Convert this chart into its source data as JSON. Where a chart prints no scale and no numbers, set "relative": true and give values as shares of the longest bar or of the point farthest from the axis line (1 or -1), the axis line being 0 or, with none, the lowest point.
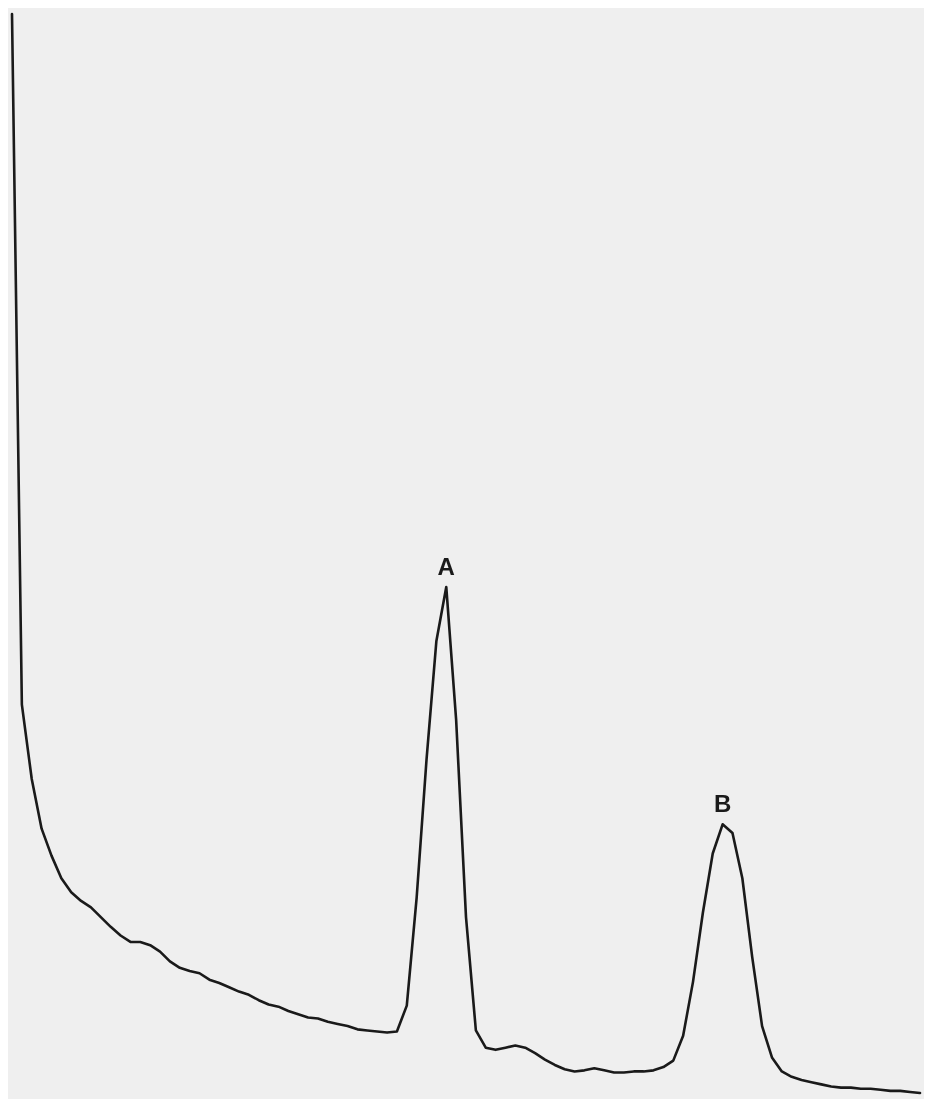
{
  "chart_data": {
    "type": "line",
    "relative": true,
    "line_style": "solid",
    "categories": [
      null,
      null,
      null,
      null,
      null,
      null,
      null,
      null,
      null,
      null,
      null,
      null,
      null,
      null,
      null,
      null,
      null,
      null,
      null,
      null,
      null,
      null,
      null,
      null,
      null,
      null,
      null,
      null,
      null,
      null,
      null,
      null,
      null,
      null,
      null,
      null,
      null,
      null,
      null,
      null,
      null,
      null,
      null,
      null,
      null,
      null,
      null,
      null,
      null,
      null,
      null,
      null,
      null,
      null,
      null,
      null,
      null,
      null,
      null,
      null,
      null,
      null,
      null,
      null,
      null,
      null,
      null,
      null,
      null,
      null,
      null,
      null,
      null,
      null,
      null,
      null,
      null,
      null,
      null,
      null,
      null,
      null,
      null,
      null,
      null,
      null,
      null,
      null,
      null,
      null,
      null,
      null,
      null
    ],
    "series": [
      {
        "color": "#1a1a1a",
        "values": [
          1,
          0.36,
          0.291,
          0.245,
          0.22,
          0.199,
          0.186,
          0.178,
          0.172,
          0.163,
          0.154,
          0.146,
          0.14,
          0.14,
          0.137,
          0.131,
          0.122,
          0.116,
          0.113,
          0.111,
          0.105,
          0.102,
          0.098,
          0.094,
          0.091,
          0.086,
          0.082,
          0.08,
          0.076,
          0.073,
          0.07,
          0.069,
          0.066,
          0.064,
          0.062,
          0.059,
          0.058,
          0.057,
          0.056,
          0.057,
          0.081,
          0.181,
          0.309,
          0.419,
          0.469,
          0.346,
          0.163,
          0.058,
          0.042,
          0.04,
          0.042,
          0.044,
          0.042,
          0.037,
          0.031,
          0.026,
          0.022,
          0.02,
          0.021,
          0.023,
          0.021,
          0.019,
          0.019,
          0.02,
          0.02,
          0.021,
          0.024,
          0.03,
          0.053,
          0.103,
          0.167,
          0.222,
          0.249,
          0.241,
          0.199,
          0.126,
          0.062,
          0.033,
          0.02,
          0.015,
          0.012,
          0.01,
          0.008,
          0.006,
          0.005,
          0.005,
          0.004,
          0.004,
          0.003,
          0.002,
          0.002,
          0.001,
          0
        ]
      }
    ],
    "annotations": [
      {
        "text": "A",
        "y": 0.469
      },
      {
        "text": "B",
        "y": 0.249
      }
    ]
  }
}
